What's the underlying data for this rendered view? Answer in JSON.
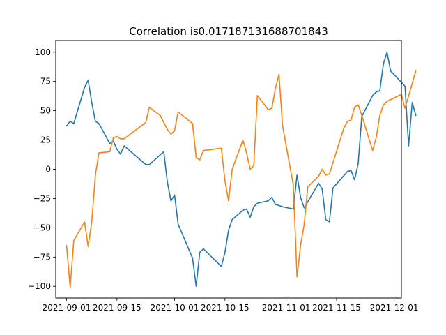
{
  "chart_data": {
    "type": "line",
    "title": "Correlation is0.017187131688701843",
    "xlabel": "",
    "ylabel": "",
    "x_axis_type": "date",
    "xlim": [
      "2021-08-29",
      "2021-12-03"
    ],
    "ylim": [
      -110,
      110
    ],
    "x_ticks": [
      "2021-09-01",
      "2021-09-15",
      "2021-10-01",
      "2021-10-15",
      "2021-11-01",
      "2021-11-15",
      "2021-12-01"
    ],
    "x_tick_labels": [
      "2021-09-01",
      "2021-09-15",
      "2021-10-01",
      "2021-10-15",
      "2021-11-01",
      "2021-11-15",
      "2021-12-01"
    ],
    "y_ticks": [
      -100,
      -75,
      -50,
      -25,
      0,
      25,
      50,
      75,
      100
    ],
    "y_tick_labels": [
      "−100",
      "−75",
      "−50",
      "−25",
      "0",
      "25",
      "50",
      "75",
      "100"
    ],
    "grid": false,
    "legend": "none",
    "series": [
      {
        "color": "#1f77b4",
        "points": [
          [
            "2021-09-01",
            37
          ],
          [
            "2021-09-02",
            41
          ],
          [
            "2021-09-03",
            39
          ],
          [
            "2021-09-06",
            70
          ],
          [
            "2021-09-07",
            76
          ],
          [
            "2021-09-08",
            57
          ],
          [
            "2021-09-09",
            41
          ],
          [
            "2021-09-10",
            39
          ],
          [
            "2021-09-13",
            22
          ],
          [
            "2021-09-14",
            24
          ],
          [
            "2021-09-15",
            17
          ],
          [
            "2021-09-16",
            13
          ],
          [
            "2021-09-17",
            20
          ],
          [
            "2021-09-23",
            4
          ],
          [
            "2021-09-24",
            4
          ],
          [
            "2021-09-28",
            15
          ],
          [
            "2021-09-29",
            -11
          ],
          [
            "2021-09-30",
            -27
          ],
          [
            "2021-10-01",
            -22
          ],
          [
            "2021-10-02",
            -47
          ],
          [
            "2021-10-06",
            -76
          ],
          [
            "2021-10-07",
            -100
          ],
          [
            "2021-10-08",
            -71
          ],
          [
            "2021-10-09",
            -68
          ],
          [
            "2021-10-14",
            -83
          ],
          [
            "2021-10-15",
            -71
          ],
          [
            "2021-10-16",
            -52
          ],
          [
            "2021-10-17",
            -43
          ],
          [
            "2021-10-20",
            -35
          ],
          [
            "2021-10-21",
            -34
          ],
          [
            "2021-10-22",
            -41
          ],
          [
            "2021-10-23",
            -32
          ],
          [
            "2021-10-24",
            -29
          ],
          [
            "2021-10-27",
            -27
          ],
          [
            "2021-10-28",
            -24
          ],
          [
            "2021-10-29",
            -30
          ],
          [
            "2021-10-30",
            -31
          ],
          [
            "2021-10-31",
            -32
          ],
          [
            "2021-11-03",
            -34
          ],
          [
            "2021-11-04",
            -5
          ],
          [
            "2021-11-05",
            -24
          ],
          [
            "2021-11-06",
            -33
          ],
          [
            "2021-11-10",
            -12
          ],
          [
            "2021-11-11",
            -17
          ],
          [
            "2021-11-12",
            -43
          ],
          [
            "2021-11-13",
            -45
          ],
          [
            "2021-11-14",
            -16
          ],
          [
            "2021-11-18",
            -2
          ],
          [
            "2021-11-19",
            -1
          ],
          [
            "2021-11-20",
            -9
          ],
          [
            "2021-11-21",
            5
          ],
          [
            "2021-11-22",
            45
          ],
          [
            "2021-11-25",
            63
          ],
          [
            "2021-11-26",
            66
          ],
          [
            "2021-11-27",
            67
          ],
          [
            "2021-11-28",
            90
          ],
          [
            "2021-11-29",
            100
          ],
          [
            "2021-11-30",
            84
          ],
          [
            "2021-12-04",
            71
          ],
          [
            "2021-12-05",
            20
          ],
          [
            "2021-12-06",
            57
          ],
          [
            "2021-12-07",
            46
          ]
        ]
      },
      {
        "color": "#ff7f0e",
        "points": [
          [
            "2021-09-01",
            -65
          ],
          [
            "2021-09-02",
            -101
          ],
          [
            "2021-09-03",
            -61
          ],
          [
            "2021-09-06",
            -45
          ],
          [
            "2021-09-07",
            -66
          ],
          [
            "2021-09-08",
            -45
          ],
          [
            "2021-09-09",
            -5
          ],
          [
            "2021-09-10",
            14
          ],
          [
            "2021-09-13",
            15
          ],
          [
            "2021-09-14",
            27
          ],
          [
            "2021-09-15",
            28
          ],
          [
            "2021-09-16",
            26
          ],
          [
            "2021-09-17",
            26
          ],
          [
            "2021-09-23",
            40
          ],
          [
            "2021-09-24",
            53
          ],
          [
            "2021-09-27",
            46
          ],
          [
            "2021-09-29",
            34
          ],
          [
            "2021-09-30",
            30
          ],
          [
            "2021-10-01",
            33
          ],
          [
            "2021-10-02",
            49
          ],
          [
            "2021-10-06",
            39
          ],
          [
            "2021-10-07",
            10
          ],
          [
            "2021-10-08",
            8
          ],
          [
            "2021-10-09",
            16
          ],
          [
            "2021-10-14",
            18
          ],
          [
            "2021-10-15",
            -10
          ],
          [
            "2021-10-16",
            -27
          ],
          [
            "2021-10-17",
            0
          ],
          [
            "2021-10-20",
            25
          ],
          [
            "2021-10-21",
            14
          ],
          [
            "2021-10-22",
            0
          ],
          [
            "2021-10-23",
            3
          ],
          [
            "2021-10-24",
            63
          ],
          [
            "2021-10-27",
            51
          ],
          [
            "2021-10-28",
            52
          ],
          [
            "2021-10-29",
            69
          ],
          [
            "2021-10-30",
            81
          ],
          [
            "2021-10-31",
            37
          ],
          [
            "2021-11-03",
            -14
          ],
          [
            "2021-11-04",
            -92
          ],
          [
            "2021-11-05",
            -65
          ],
          [
            "2021-11-06",
            -47
          ],
          [
            "2021-11-07",
            -15
          ],
          [
            "2021-11-10",
            -6
          ],
          [
            "2021-11-11",
            0
          ],
          [
            "2021-11-12",
            -5
          ],
          [
            "2021-11-13",
            -4
          ],
          [
            "2021-11-17",
            35
          ],
          [
            "2021-11-18",
            41
          ],
          [
            "2021-11-19",
            42
          ],
          [
            "2021-11-20",
            53
          ],
          [
            "2021-11-21",
            55
          ],
          [
            "2021-11-22",
            46
          ],
          [
            "2021-11-25",
            16
          ],
          [
            "2021-11-26",
            27
          ],
          [
            "2021-11-27",
            46
          ],
          [
            "2021-11-28",
            55
          ],
          [
            "2021-11-29",
            58
          ],
          [
            "2021-12-03",
            64
          ],
          [
            "2021-12-04",
            52
          ],
          [
            "2021-12-07",
            84
          ]
        ]
      }
    ]
  }
}
